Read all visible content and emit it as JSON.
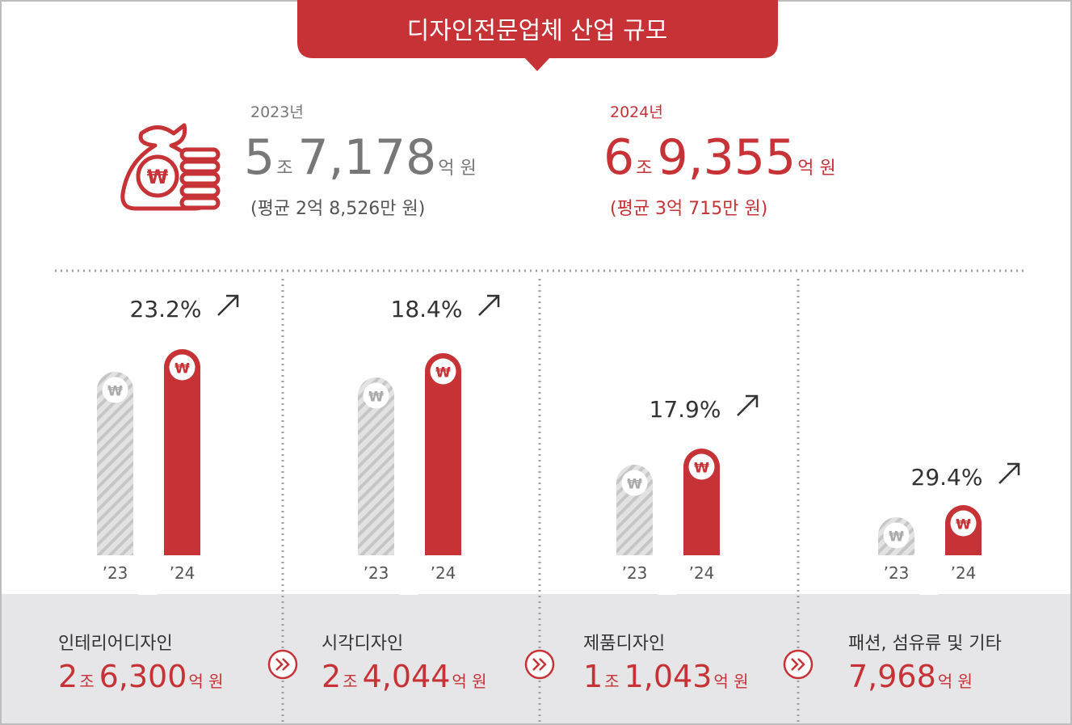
{
  "title": "디자인전문업체 산업 규모",
  "currency_symbol": "₩",
  "totals": [
    {
      "year": "2023년",
      "amount": [
        "5",
        "조",
        "7,178",
        "억 원"
      ],
      "average": "(평균 2억 8,526만 원)"
    },
    {
      "year": "2024년",
      "amount": [
        "6",
        "조",
        "9,355",
        "억 원"
      ],
      "average": "(평균 3억 715만 원)"
    }
  ],
  "panels": [
    {
      "growth": "23.2%",
      "years": [
        "’23",
        "’24"
      ],
      "name": "인테리어디자인",
      "amount": [
        "2",
        "조",
        "6,300",
        "억 원"
      ]
    },
    {
      "growth": "18.4%",
      "years": [
        "’23",
        "’24"
      ],
      "name": "시각디자인",
      "amount": [
        "2",
        "조",
        "4,044",
        "억 원"
      ]
    },
    {
      "growth": "17.9%",
      "years": [
        "’23",
        "’24"
      ],
      "name": "제품디자인",
      "amount": [
        "1",
        "조",
        "1,043",
        "억 원"
      ]
    },
    {
      "growth": "29.4%",
      "years": [
        "’23",
        "’24"
      ],
      "name": "패션, 섬유류 및 기타",
      "amount": [
        "7,968",
        "억 원"
      ]
    }
  ]
}
